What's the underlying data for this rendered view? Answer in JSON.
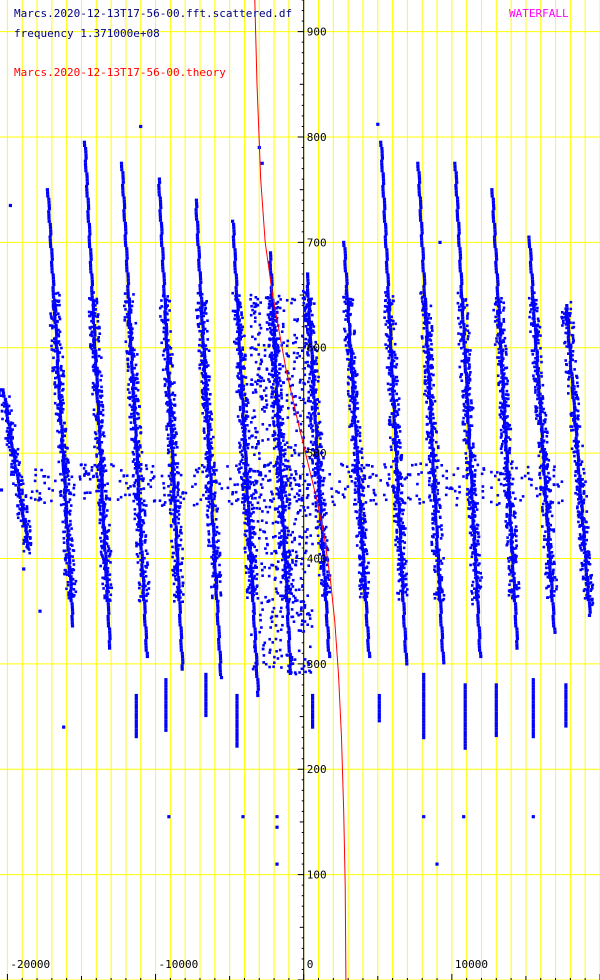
{
  "header": {
    "file_label": "Marcs.2020-12-13T17-56-00.fft.scattered.df",
    "frequency_label": "frequency 1.371000e+08",
    "theory_label": "Marcs.2020-12-13T17-56-00.theory",
    "mode_label": "WATERFALL"
  },
  "colors": {
    "background": "#ffffff",
    "grid": "#ffff00",
    "axis": "#000000",
    "data": "#0000ff",
    "theory": "#ff0000",
    "header_text": "#000080",
    "theory_text": "#ff0000",
    "mode_text": "#ff00ff"
  },
  "chart_data": {
    "type": "scatter",
    "xlim": [
      -20500,
      20000
    ],
    "ylim": [
      0,
      930
    ],
    "x_ticks": [
      {
        "value": -20000,
        "label": "-20000"
      },
      {
        "value": -10000,
        "label": "-10000"
      },
      {
        "value": 0,
        "label": "0"
      },
      {
        "value": 10000,
        "label": "10000"
      }
    ],
    "y_ticks": [
      {
        "value": 100,
        "label": "100"
      },
      {
        "value": 200,
        "label": "200"
      },
      {
        "value": 300,
        "label": "300"
      },
      {
        "value": 400,
        "label": "400"
      },
      {
        "value": 500,
        "label": "500"
      },
      {
        "value": 600,
        "label": "600"
      },
      {
        "value": 700,
        "label": "700"
      },
      {
        "value": 800,
        "label": "800"
      },
      {
        "value": 900,
        "label": "900"
      }
    ],
    "grid": true,
    "series": [
      {
        "name": "Marcs.2020-12-13T17-56-00.theory",
        "style": "line",
        "points": [
          [
            -3300,
            930
          ],
          [
            -3150,
            850
          ],
          [
            -2900,
            760
          ],
          [
            -2600,
            700
          ],
          [
            -2100,
            650
          ],
          [
            -1200,
            580
          ],
          [
            -400,
            530
          ],
          [
            300,
            490
          ],
          [
            900,
            455
          ],
          [
            1400,
            420
          ],
          [
            1800,
            380
          ],
          [
            2100,
            340
          ],
          [
            2350,
            290
          ],
          [
            2550,
            230
          ],
          [
            2700,
            160
          ],
          [
            2800,
            90
          ],
          [
            2850,
            0
          ]
        ]
      },
      {
        "name": "",
        "style": "points",
        "streaks": [
          {
            "x_top": -20300,
            "y_top": 560,
            "x_bottom": -18600,
            "y_bottom": 410
          },
          {
            "x_top": -17300,
            "y_top": 750,
            "x_bottom": -15600,
            "y_bottom": 335
          },
          {
            "x_top": -14800,
            "y_top": 795,
            "x_bottom": -13100,
            "y_bottom": 315
          },
          {
            "x_top": -12300,
            "y_top": 775,
            "x_bottom": -10600,
            "y_bottom": 305
          },
          {
            "x_top": -9800,
            "y_top": 760,
            "x_bottom": -8200,
            "y_bottom": 295
          },
          {
            "x_top": -7300,
            "y_top": 740,
            "x_bottom": -5600,
            "y_bottom": 285
          },
          {
            "x_top": -4800,
            "y_top": 720,
            "x_bottom": -3100,
            "y_bottom": 270
          },
          {
            "x_top": -2300,
            "y_top": 690,
            "x_bottom": -900,
            "y_bottom": 290
          },
          {
            "x_top": 200,
            "y_top": 670,
            "x_bottom": 1700,
            "y_bottom": 305
          },
          {
            "x_top": 2700,
            "y_top": 700,
            "x_bottom": 4400,
            "y_bottom": 305
          },
          {
            "x_top": 5200,
            "y_top": 795,
            "x_bottom": 6900,
            "y_bottom": 300
          },
          {
            "x_top": 7700,
            "y_top": 775,
            "x_bottom": 9400,
            "y_bottom": 300
          },
          {
            "x_top": 10200,
            "y_top": 775,
            "x_bottom": 11900,
            "y_bottom": 305
          },
          {
            "x_top": 12700,
            "y_top": 750,
            "x_bottom": 14400,
            "y_bottom": 315
          },
          {
            "x_top": 15200,
            "y_top": 705,
            "x_bottom": 16900,
            "y_bottom": 330
          },
          {
            "x_top": 17700,
            "y_top": 640,
            "x_bottom": 19300,
            "y_bottom": 345
          }
        ],
        "blob_center": {
          "x": -1500,
          "y": 470
        },
        "dropouts": [
          {
            "x": -11300,
            "y_top": 270,
            "y_bottom": 230
          },
          {
            "x": -9300,
            "y_top": 285,
            "y_bottom": 235
          },
          {
            "x": -6600,
            "y_top": 290,
            "y_bottom": 250
          },
          {
            "x": -4500,
            "y_top": 270,
            "y_bottom": 220
          },
          {
            "x": 600,
            "y_top": 270,
            "y_bottom": 240
          },
          {
            "x": 5100,
            "y_top": 270,
            "y_bottom": 245
          },
          {
            "x": 8100,
            "y_top": 290,
            "y_bottom": 230
          },
          {
            "x": 10900,
            "y_top": 280,
            "y_bottom": 220
          },
          {
            "x": 13000,
            "y_top": 280,
            "y_bottom": 230
          },
          {
            "x": 15500,
            "y_top": 285,
            "y_bottom": 230
          },
          {
            "x": 17700,
            "y_top": 280,
            "y_bottom": 240
          }
        ],
        "isolated_points": [
          [
            -11000,
            810
          ],
          [
            -3000,
            790
          ],
          [
            -2800,
            775
          ],
          [
            5000,
            812
          ],
          [
            -19800,
            735
          ],
          [
            -16200,
            240
          ],
          [
            -9100,
            155
          ],
          [
            -4100,
            155
          ],
          [
            -1800,
            155
          ],
          [
            -1800,
            145
          ],
          [
            -1800,
            110
          ],
          [
            8100,
            155
          ],
          [
            9000,
            110
          ],
          [
            10800,
            155
          ],
          [
            15500,
            155
          ],
          [
            -18900,
            390
          ],
          [
            -17800,
            350
          ],
          [
            9200,
            700
          ],
          [
            -20400,
            465
          ],
          [
            -19300,
            450
          ]
        ]
      }
    ]
  }
}
